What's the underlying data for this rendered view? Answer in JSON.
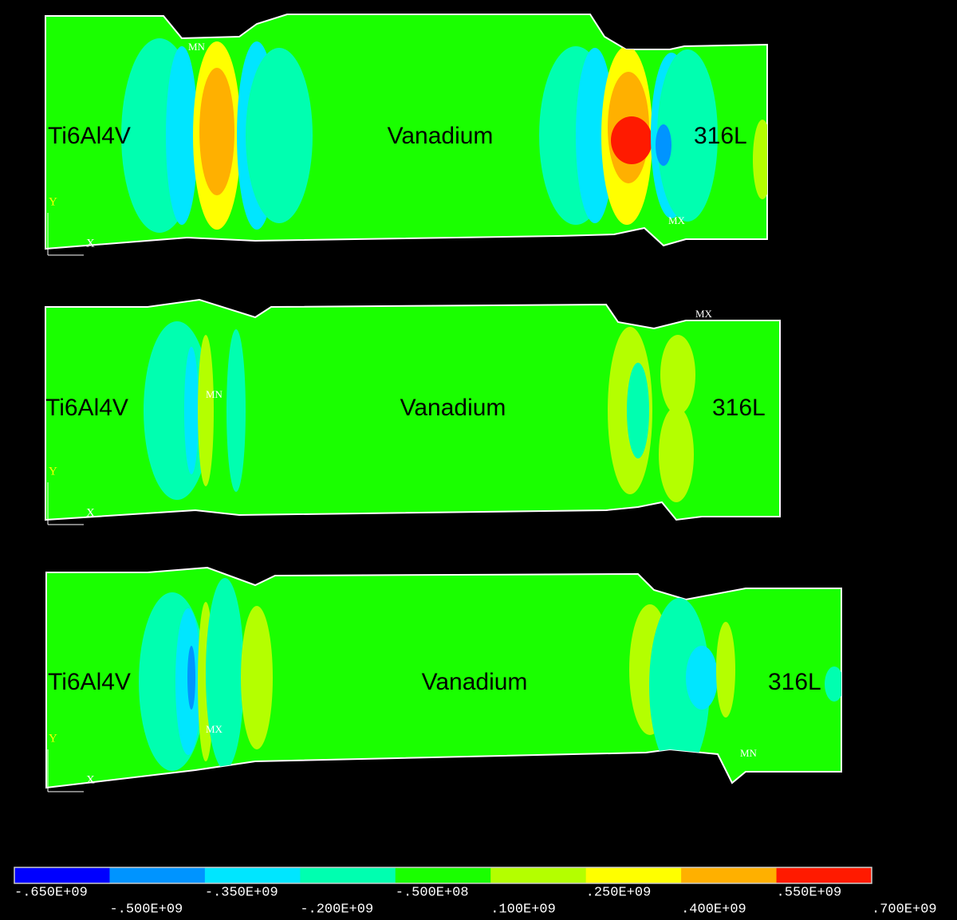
{
  "panels": [
    {
      "materials": [
        "Ti6Al4V",
        "Vanadium",
        "316L"
      ],
      "min_marker": "MN",
      "max_marker": "MX",
      "triad": [
        "Y",
        "X"
      ]
    },
    {
      "materials": [
        "Ti6Al4V",
        "Vanadium",
        "316L"
      ],
      "min_marker": "MN",
      "max_marker": "MX",
      "triad": [
        "Y",
        "X"
      ]
    },
    {
      "materials": [
        "Ti6Al4V",
        "Vanadium",
        "316L"
      ],
      "min_marker": "MN",
      "max_marker": "MX",
      "triad": [
        "Y",
        "X"
      ]
    }
  ],
  "legend": {
    "colors": [
      "#0000ff",
      "#0094ff",
      "#00e6ff",
      "#00ffb0",
      "#1aff00",
      "#b4ff00",
      "#ffff00",
      "#ffb000",
      "#ff1a00"
    ],
    "labels": [
      "-.650E+09",
      "-.500E+09",
      "-.350E+09",
      "-.200E+09",
      "-.500E+08",
      ".100E+09",
      ".250E+09",
      ".400E+09",
      ".550E+09",
      ".700E+09"
    ]
  }
}
